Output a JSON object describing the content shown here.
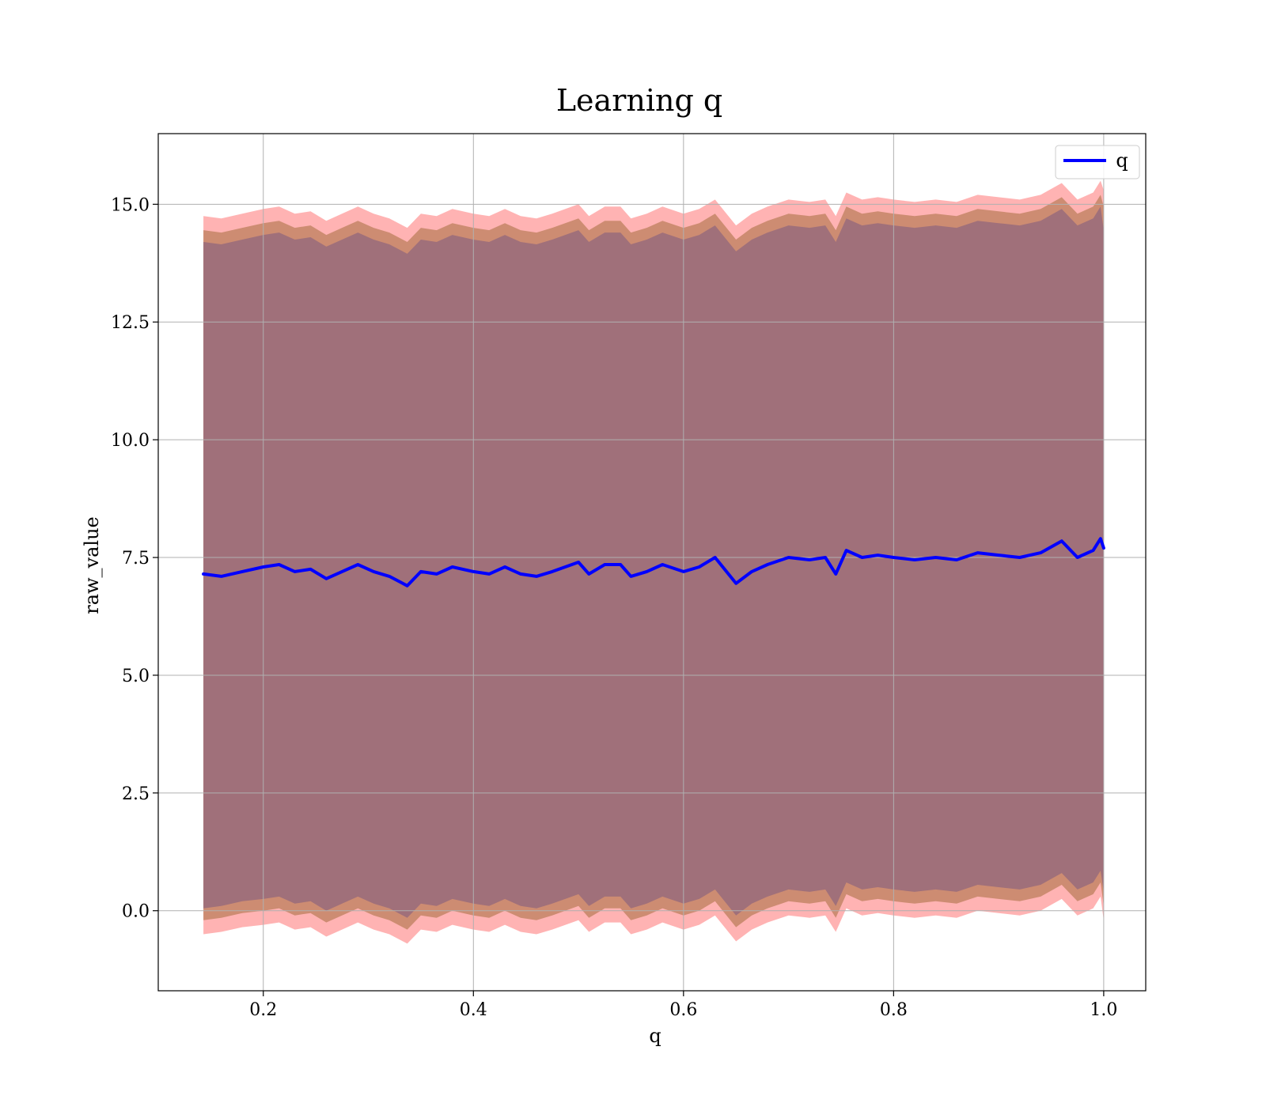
{
  "chart_data": {
    "type": "line",
    "title": "Learning q",
    "xlabel": "q",
    "ylabel": "raw_value",
    "xlim": [
      0.1,
      1.04
    ],
    "ylim": [
      -1.7,
      16.5
    ],
    "grid": true,
    "legend_position": "top-right",
    "x_ticks": [
      0.2,
      0.4,
      0.6,
      0.8,
      1.0
    ],
    "x_tick_labels": [
      "0.2",
      "0.4",
      "0.6",
      "0.8",
      "1.0"
    ],
    "y_ticks": [
      0.0,
      2.5,
      5.0,
      7.5,
      10.0,
      12.5,
      15.0
    ],
    "y_tick_labels": [
      "0.0",
      "2.5",
      "5.0",
      "7.5",
      "10.0",
      "12.5",
      "15.0"
    ],
    "colors": {
      "line": "#0000ff",
      "band_outer": "#ff9a9a",
      "band_middle": "#c8876a",
      "band_inner": "#a0707a"
    },
    "series": [
      {
        "name": "q",
        "x": [
          0.143,
          0.16,
          0.18,
          0.2,
          0.215,
          0.23,
          0.245,
          0.26,
          0.275,
          0.29,
          0.305,
          0.32,
          0.337,
          0.35,
          0.365,
          0.38,
          0.4,
          0.415,
          0.43,
          0.445,
          0.46,
          0.475,
          0.5,
          0.51,
          0.525,
          0.54,
          0.55,
          0.565,
          0.58,
          0.6,
          0.615,
          0.63,
          0.65,
          0.665,
          0.68,
          0.7,
          0.72,
          0.735,
          0.745,
          0.755,
          0.77,
          0.785,
          0.8,
          0.82,
          0.84,
          0.86,
          0.88,
          0.9,
          0.92,
          0.94,
          0.96,
          0.975,
          0.99,
          0.997,
          1.0
        ],
        "y": [
          7.15,
          7.1,
          7.2,
          7.3,
          7.35,
          7.2,
          7.25,
          7.05,
          7.2,
          7.35,
          7.2,
          7.1,
          6.9,
          7.2,
          7.15,
          7.3,
          7.2,
          7.15,
          7.3,
          7.15,
          7.1,
          7.2,
          7.4,
          7.15,
          7.35,
          7.35,
          7.1,
          7.2,
          7.35,
          7.2,
          7.3,
          7.5,
          6.95,
          7.2,
          7.35,
          7.5,
          7.45,
          7.5,
          7.15,
          7.65,
          7.5,
          7.55,
          7.5,
          7.45,
          7.5,
          7.45,
          7.6,
          7.55,
          7.5,
          7.6,
          7.85,
          7.5,
          7.65,
          7.9,
          7.7
        ]
      }
    ],
    "bands": [
      {
        "layer": "outer",
        "lower": [
          -0.5,
          -0.45,
          -0.35,
          -0.3,
          -0.25,
          -0.4,
          -0.35,
          -0.55,
          -0.4,
          -0.25,
          -0.4,
          -0.5,
          -0.7,
          -0.4,
          -0.45,
          -0.3,
          -0.4,
          -0.45,
          -0.3,
          -0.45,
          -0.5,
          -0.4,
          -0.2,
          -0.45,
          -0.25,
          -0.25,
          -0.5,
          -0.4,
          -0.25,
          -0.4,
          -0.3,
          -0.1,
          -0.65,
          -0.4,
          -0.25,
          -0.1,
          -0.15,
          -0.1,
          -0.45,
          0.05,
          -0.1,
          -0.05,
          -0.1,
          -0.15,
          -0.1,
          -0.15,
          0.0,
          -0.05,
          -0.1,
          0.0,
          0.25,
          -0.1,
          0.05,
          0.3,
          -0.2
        ],
        "upper": [
          14.75,
          14.7,
          14.8,
          14.9,
          14.95,
          14.8,
          14.85,
          14.65,
          14.8,
          14.95,
          14.8,
          14.7,
          14.5,
          14.8,
          14.75,
          14.9,
          14.8,
          14.75,
          14.9,
          14.75,
          14.7,
          14.8,
          15.0,
          14.75,
          14.95,
          14.95,
          14.7,
          14.8,
          14.95,
          14.8,
          14.9,
          15.1,
          14.55,
          14.8,
          14.95,
          15.1,
          15.05,
          15.1,
          14.75,
          15.25,
          15.1,
          15.15,
          15.1,
          15.05,
          15.1,
          15.05,
          15.2,
          15.15,
          15.1,
          15.2,
          15.45,
          15.1,
          15.25,
          15.5,
          15.3
        ]
      },
      {
        "layer": "middle",
        "lower": [
          -0.2,
          -0.15,
          -0.05,
          0.0,
          0.05,
          -0.1,
          -0.05,
          -0.25,
          -0.1,
          0.05,
          -0.1,
          -0.2,
          -0.4,
          -0.1,
          -0.15,
          0.0,
          -0.1,
          -0.15,
          0.0,
          -0.15,
          -0.2,
          -0.1,
          0.1,
          -0.15,
          0.05,
          0.05,
          -0.2,
          -0.1,
          0.05,
          -0.1,
          0.0,
          0.2,
          -0.35,
          -0.1,
          0.05,
          0.2,
          0.15,
          0.2,
          -0.15,
          0.35,
          0.2,
          0.25,
          0.2,
          0.15,
          0.2,
          0.15,
          0.3,
          0.25,
          0.2,
          0.3,
          0.55,
          0.2,
          0.35,
          0.6,
          0.1
        ],
        "upper": [
          14.45,
          14.4,
          14.5,
          14.6,
          14.65,
          14.5,
          14.55,
          14.35,
          14.5,
          14.65,
          14.5,
          14.4,
          14.2,
          14.5,
          14.45,
          14.6,
          14.5,
          14.45,
          14.6,
          14.45,
          14.4,
          14.5,
          14.7,
          14.45,
          14.65,
          14.65,
          14.4,
          14.5,
          14.65,
          14.5,
          14.6,
          14.8,
          14.25,
          14.5,
          14.65,
          14.8,
          14.75,
          14.8,
          14.45,
          14.95,
          14.8,
          14.85,
          14.8,
          14.75,
          14.8,
          14.75,
          14.9,
          14.85,
          14.8,
          14.9,
          15.15,
          14.8,
          14.95,
          15.2,
          14.95
        ]
      },
      {
        "layer": "inner",
        "lower": [
          0.05,
          0.1,
          0.2,
          0.25,
          0.3,
          0.15,
          0.2,
          0.0,
          0.15,
          0.3,
          0.15,
          0.05,
          -0.15,
          0.15,
          0.1,
          0.25,
          0.15,
          0.1,
          0.25,
          0.1,
          0.05,
          0.15,
          0.35,
          0.1,
          0.3,
          0.3,
          0.05,
          0.15,
          0.3,
          0.15,
          0.25,
          0.45,
          -0.1,
          0.15,
          0.3,
          0.45,
          0.4,
          0.45,
          0.1,
          0.6,
          0.45,
          0.5,
          0.45,
          0.4,
          0.45,
          0.4,
          0.55,
          0.5,
          0.45,
          0.55,
          0.8,
          0.45,
          0.6,
          0.85,
          0.4
        ],
        "upper": [
          14.2,
          14.15,
          14.25,
          14.35,
          14.4,
          14.25,
          14.3,
          14.1,
          14.25,
          14.4,
          14.25,
          14.15,
          13.95,
          14.25,
          14.2,
          14.35,
          14.25,
          14.2,
          14.35,
          14.2,
          14.15,
          14.25,
          14.45,
          14.2,
          14.4,
          14.4,
          14.15,
          14.25,
          14.4,
          14.25,
          14.35,
          14.55,
          14.0,
          14.25,
          14.4,
          14.55,
          14.5,
          14.55,
          14.2,
          14.7,
          14.55,
          14.6,
          14.55,
          14.5,
          14.55,
          14.5,
          14.65,
          14.6,
          14.55,
          14.65,
          14.9,
          14.55,
          14.7,
          14.95,
          14.45
        ]
      }
    ]
  }
}
